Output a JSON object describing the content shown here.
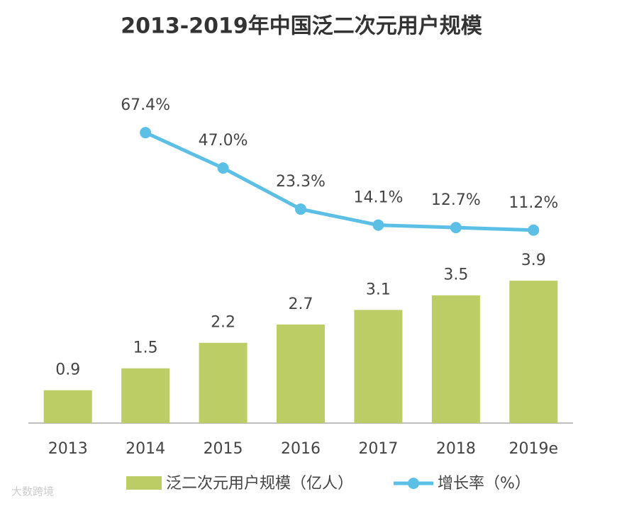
{
  "chart_data": {
    "type": "bar-line",
    "title": "2013-2019年中国泛二次元用户规模",
    "categories": [
      "2013",
      "2014",
      "2015",
      "2016",
      "2017",
      "2018",
      "2019e"
    ],
    "series": [
      {
        "name": "泛二次元用户规模（亿人）",
        "type": "bar",
        "color": "#bccd66",
        "values": [
          0.9,
          1.5,
          2.2,
          2.7,
          3.1,
          3.5,
          3.9
        ]
      },
      {
        "name": "增长率（%）",
        "type": "line",
        "axis": "y2",
        "color": "#5bbfe6",
        "values": [
          null,
          67.4,
          47.0,
          23.3,
          14.1,
          12.7,
          11.2
        ],
        "value_labels": [
          null,
          "67.4%",
          "47.0%",
          "23.3%",
          "14.1%",
          "12.7%",
          "11.2%"
        ]
      }
    ],
    "ylim": [
      0,
      9.65
    ],
    "y2lim": [
      -100,
      103
    ],
    "legend": "bottom",
    "watermark": "大数跨境"
  }
}
